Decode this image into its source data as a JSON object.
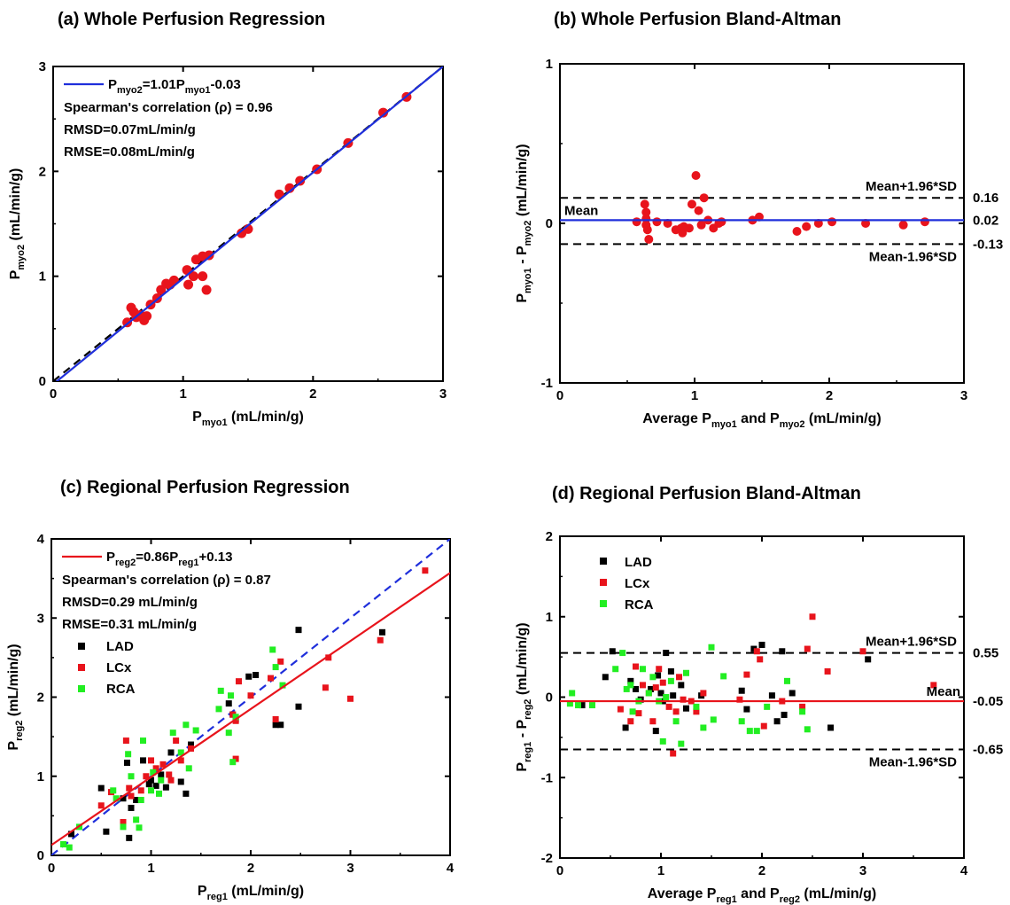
{
  "chart_data": [
    {
      "type": "scatter",
      "title": "(a) Whole Perfusion Regression",
      "xlabel": {
        "main": "P",
        "sub": "myo1",
        "rest": " (mL/min/g)"
      },
      "ylabel": {
        "main": "P",
        "sub": "myo2",
        "rest": " (mL/min/g)"
      },
      "xlim": [
        0,
        3
      ],
      "ylim": [
        0,
        3
      ],
      "xticks": [
        "0",
        "1",
        "2",
        "3"
      ],
      "yticks": [
        "0",
        "1",
        "2",
        "3"
      ],
      "fit": {
        "slope": 1.01,
        "intercept": -0.03,
        "color": "#1f2fdb",
        "label_parts": [
          "P",
          "myo2",
          "=1.01P",
          "myo1",
          "-0.03"
        ]
      },
      "identity_line": true,
      "stats": [
        "Spearman's correlation (ρ) = 0.96",
        "RMSD=0.07mL/min/g",
        "RMSE=0.08mL/min/g"
      ],
      "point_color": "#e8141c",
      "points": [
        [
          0.57,
          0.56
        ],
        [
          0.6,
          0.7
        ],
        [
          0.62,
          0.66
        ],
        [
          0.64,
          0.61
        ],
        [
          0.67,
          0.63
        ],
        [
          0.7,
          0.58
        ],
        [
          0.72,
          0.62
        ],
        [
          0.75,
          0.73
        ],
        [
          0.8,
          0.79
        ],
        [
          0.83,
          0.87
        ],
        [
          0.87,
          0.93
        ],
        [
          0.9,
          0.92
        ],
        [
          0.93,
          0.96
        ],
        [
          1.03,
          1.06
        ],
        [
          1.04,
          0.92
        ],
        [
          1.08,
          1.0
        ],
        [
          1.1,
          1.16
        ],
        [
          1.15,
          1.19
        ],
        [
          1.15,
          1.0
        ],
        [
          1.18,
          0.87
        ],
        [
          1.2,
          1.2
        ],
        [
          1.45,
          1.41
        ],
        [
          1.5,
          1.45
        ],
        [
          1.74,
          1.78
        ],
        [
          1.82,
          1.84
        ],
        [
          1.9,
          1.91
        ],
        [
          2.03,
          2.02
        ],
        [
          2.27,
          2.27
        ],
        [
          2.54,
          2.56
        ],
        [
          2.72,
          2.71
        ]
      ]
    },
    {
      "type": "scatter",
      "title": "(b) Whole Perfusion Bland-Altman",
      "xlabel": {
        "main": "Average P",
        "sub": "myo1",
        "mid": " and P",
        "sub2": "myo2",
        "rest": "  (mL/min/g)"
      },
      "ylabel": {
        "main": "P",
        "sub": "myo1",
        "mid": " - P",
        "sub2": "myo2",
        "rest": "  (mL/min/g)"
      },
      "xlim": [
        0,
        3
      ],
      "ylim": [
        -1,
        1
      ],
      "xticks": [
        "0",
        "1",
        "2",
        "3"
      ],
      "yticks": [
        "-1",
        "0",
        "1"
      ],
      "mean": 0.02,
      "upper": 0.16,
      "lower": -0.13,
      "right_labels": [
        "0.16",
        "0.02",
        "-0.13"
      ],
      "line_labels": {
        "mean": "Mean",
        "upper": "Mean+1.96*SD",
        "lower": "Mean-1.96*SD"
      },
      "mean_color": "#1f2fdb",
      "point_color": "#e8141c",
      "points": [
        [
          0.57,
          0.01
        ],
        [
          0.63,
          0.12
        ],
        [
          0.64,
          0.07
        ],
        [
          0.64,
          0.03
        ],
        [
          0.64,
          -0.01
        ],
        [
          0.65,
          -0.04
        ],
        [
          0.66,
          -0.1
        ],
        [
          0.72,
          0.01
        ],
        [
          0.8,
          0.0
        ],
        [
          0.86,
          -0.04
        ],
        [
          0.9,
          -0.03
        ],
        [
          0.91,
          -0.06
        ],
        [
          0.92,
          -0.02
        ],
        [
          0.96,
          -0.03
        ],
        [
          0.98,
          0.12
        ],
        [
          1.01,
          0.3
        ],
        [
          1.03,
          0.08
        ],
        [
          1.05,
          -0.01
        ],
        [
          1.07,
          0.16
        ],
        [
          1.1,
          0.02
        ],
        [
          1.14,
          -0.03
        ],
        [
          1.18,
          0.0
        ],
        [
          1.2,
          0.01
        ],
        [
          1.43,
          0.02
        ],
        [
          1.48,
          0.04
        ],
        [
          1.76,
          -0.05
        ],
        [
          1.83,
          -0.02
        ],
        [
          1.92,
          0.0
        ],
        [
          2.02,
          0.01
        ],
        [
          2.27,
          0.0
        ],
        [
          2.55,
          -0.01
        ],
        [
          2.71,
          0.01
        ]
      ]
    },
    {
      "type": "scatter",
      "title": "(c) Regional Perfusion Regression",
      "xlabel": {
        "main": "P",
        "sub": "reg1",
        "rest": " (mL/min/g)"
      },
      "ylabel": {
        "main": "P",
        "sub": "reg2",
        "rest": " (mL/min/g)"
      },
      "xlim": [
        0,
        4
      ],
      "ylim": [
        0,
        4
      ],
      "xticks": [
        "0",
        "1",
        "2",
        "3",
        "4"
      ],
      "yticks": [
        "0",
        "1",
        "2",
        "3",
        "4"
      ],
      "fit": {
        "slope": 0.86,
        "intercept": 0.13,
        "color": "#e8141c",
        "label_parts": [
          "P",
          "reg2",
          "=0.86P",
          "reg1",
          "+0.13"
        ]
      },
      "identity_line": true,
      "stats": [
        "Spearman's correlation (ρ) = 0.87",
        "RMSD=0.29 mL/min/g",
        "RMSE=0.31 mL/min/g"
      ],
      "series": [
        {
          "name": "LAD",
          "color": "#000000",
          "points": [
            [
              0.2,
              0.27
            ],
            [
              0.5,
              0.85
            ],
            [
              0.55,
              0.3
            ],
            [
              0.72,
              0.72
            ],
            [
              0.76,
              1.17
            ],
            [
              0.78,
              0.22
            ],
            [
              0.8,
              0.6
            ],
            [
              0.85,
              0.7
            ],
            [
              0.92,
              1.2
            ],
            [
              0.98,
              0.9
            ],
            [
              1.0,
              0.95
            ],
            [
              1.05,
              0.88
            ],
            [
              1.1,
              1.02
            ],
            [
              1.15,
              0.86
            ],
            [
              1.2,
              1.3
            ],
            [
              1.3,
              0.93
            ],
            [
              1.35,
              0.78
            ],
            [
              1.4,
              1.4
            ],
            [
              1.78,
              1.92
            ],
            [
              1.82,
              1.78
            ],
            [
              1.85,
              1.72
            ],
            [
              1.98,
              2.26
            ],
            [
              2.05,
              2.28
            ],
            [
              2.25,
              1.65
            ],
            [
              2.3,
              1.65
            ],
            [
              2.48,
              2.85
            ],
            [
              2.48,
              1.88
            ],
            [
              3.32,
              2.82
            ]
          ]
        },
        {
          "name": "LCx",
          "color": "#e8141c",
          "points": [
            [
              0.5,
              0.63
            ],
            [
              0.6,
              0.8
            ],
            [
              0.72,
              0.42
            ],
            [
              0.75,
              1.45
            ],
            [
              0.78,
              0.85
            ],
            [
              0.8,
              0.75
            ],
            [
              0.9,
              0.82
            ],
            [
              0.95,
              1.0
            ],
            [
              1.0,
              1.2
            ],
            [
              1.05,
              1.1
            ],
            [
              1.12,
              1.15
            ],
            [
              1.18,
              1.02
            ],
            [
              1.2,
              0.95
            ],
            [
              1.25,
              1.45
            ],
            [
              1.3,
              1.2
            ],
            [
              1.4,
              1.35
            ],
            [
              1.82,
              1.78
            ],
            [
              1.85,
              1.7
            ],
            [
              1.85,
              1.22
            ],
            [
              1.88,
              2.2
            ],
            [
              2.0,
              2.02
            ],
            [
              2.2,
              2.24
            ],
            [
              2.25,
              1.72
            ],
            [
              2.3,
              2.45
            ],
            [
              2.75,
              2.12
            ],
            [
              2.78,
              2.5
            ],
            [
              3.0,
              1.98
            ],
            [
              3.3,
              2.72
            ],
            [
              3.75,
              3.6
            ]
          ]
        },
        {
          "name": "RCA",
          "color": "#22ee22",
          "points": [
            [
              0.12,
              0.14
            ],
            [
              0.18,
              0.1
            ],
            [
              0.28,
              0.36
            ],
            [
              0.62,
              0.82
            ],
            [
              0.65,
              0.72
            ],
            [
              0.72,
              0.36
            ],
            [
              0.77,
              1.28
            ],
            [
              0.8,
              1.0
            ],
            [
              0.85,
              0.45
            ],
            [
              0.88,
              0.35
            ],
            [
              0.9,
              0.7
            ],
            [
              0.92,
              1.45
            ],
            [
              1.0,
              0.82
            ],
            [
              1.02,
              1.05
            ],
            [
              1.08,
              0.78
            ],
            [
              1.1,
              0.95
            ],
            [
              1.22,
              1.55
            ],
            [
              1.3,
              1.3
            ],
            [
              1.35,
              1.65
            ],
            [
              1.38,
              1.1
            ],
            [
              1.45,
              1.58
            ],
            [
              1.68,
              1.85
            ],
            [
              1.7,
              2.08
            ],
            [
              1.78,
              1.55
            ],
            [
              1.8,
              2.02
            ],
            [
              1.82,
              1.18
            ],
            [
              1.85,
              1.75
            ],
            [
              2.22,
              2.6
            ],
            [
              2.25,
              2.38
            ],
            [
              2.32,
              2.15
            ]
          ]
        }
      ]
    },
    {
      "type": "scatter",
      "title": "(d) Regional Perfusion Bland-Altman",
      "xlabel": {
        "main": "Average P",
        "sub": "reg1",
        "mid": " and P",
        "sub2": "reg2",
        "rest": "  (mL/min/g)"
      },
      "ylabel": {
        "main": "P",
        "sub": "reg1",
        "mid": " - P",
        "sub2": "reg2",
        "rest": "  (mL/min/g)"
      },
      "xlim": [
        0,
        4
      ],
      "ylim": [
        -2,
        2
      ],
      "xticks": [
        "0",
        "1",
        "2",
        "3",
        "4"
      ],
      "yticks": [
        "-2",
        "-1",
        "0",
        "1",
        "2"
      ],
      "mean": -0.05,
      "upper": 0.55,
      "lower": -0.65,
      "right_labels": [
        "0.55",
        "-0.05",
        "-0.65"
      ],
      "line_labels": {
        "mean": "Mean",
        "upper": "Mean+1.96*SD",
        "lower": "Mean-1.96*SD"
      },
      "mean_color": "#e8141c",
      "series": [
        {
          "name": "LAD",
          "color": "#000000",
          "points": [
            [
              0.22,
              -0.1
            ],
            [
              0.45,
              0.25
            ],
            [
              0.52,
              0.57
            ],
            [
              0.65,
              -0.38
            ],
            [
              0.7,
              0.2
            ],
            [
              0.75,
              0.1
            ],
            [
              0.8,
              -0.03
            ],
            [
              0.9,
              0.1
            ],
            [
              0.95,
              -0.42
            ],
            [
              0.97,
              0.27
            ],
            [
              1.0,
              0.05
            ],
            [
              1.02,
              -0.05
            ],
            [
              1.05,
              0.55
            ],
            [
              1.1,
              0.32
            ],
            [
              1.12,
              0.02
            ],
            [
              1.2,
              0.15
            ],
            [
              1.25,
              -0.14
            ],
            [
              1.4,
              0.02
            ],
            [
              1.8,
              0.08
            ],
            [
              1.85,
              -0.15
            ],
            [
              1.92,
              0.6
            ],
            [
              2.0,
              0.65
            ],
            [
              2.1,
              0.02
            ],
            [
              2.15,
              -0.3
            ],
            [
              2.2,
              0.57
            ],
            [
              2.22,
              -0.22
            ],
            [
              2.3,
              0.05
            ],
            [
              2.68,
              -0.38
            ],
            [
              3.05,
              0.47
            ]
          ]
        },
        {
          "name": "LCx",
          "color": "#e8141c",
          "points": [
            [
              0.6,
              -0.15
            ],
            [
              0.7,
              -0.3
            ],
            [
              0.75,
              0.38
            ],
            [
              0.78,
              -0.2
            ],
            [
              0.82,
              0.15
            ],
            [
              0.88,
              0.05
            ],
            [
              0.92,
              -0.3
            ],
            [
              0.95,
              0.12
            ],
            [
              0.98,
              0.35
            ],
            [
              1.02,
              0.18
            ],
            [
              1.08,
              -0.12
            ],
            [
              1.12,
              -0.7
            ],
            [
              1.15,
              -0.18
            ],
            [
              1.18,
              0.25
            ],
            [
              1.22,
              -0.03
            ],
            [
              1.3,
              -0.05
            ],
            [
              1.35,
              -0.18
            ],
            [
              1.42,
              0.05
            ],
            [
              1.78,
              -0.03
            ],
            [
              1.85,
              0.28
            ],
            [
              1.95,
              0.57
            ],
            [
              1.98,
              0.47
            ],
            [
              2.02,
              -0.36
            ],
            [
              2.2,
              -0.05
            ],
            [
              2.4,
              -0.12
            ],
            [
              2.45,
              0.6
            ],
            [
              2.5,
              1.0
            ],
            [
              2.65,
              0.32
            ],
            [
              3.0,
              0.57
            ],
            [
              3.7,
              0.15
            ]
          ]
        },
        {
          "name": "RCA",
          "color": "#22ee22",
          "points": [
            [
              0.1,
              -0.08
            ],
            [
              0.12,
              0.05
            ],
            [
              0.18,
              -0.1
            ],
            [
              0.32,
              -0.1
            ],
            [
              0.55,
              0.35
            ],
            [
              0.62,
              0.55
            ],
            [
              0.66,
              0.1
            ],
            [
              0.7,
              0.15
            ],
            [
              0.72,
              -0.18
            ],
            [
              0.78,
              -0.05
            ],
            [
              0.82,
              0.35
            ],
            [
              0.88,
              0.05
            ],
            [
              0.92,
              0.25
            ],
            [
              0.98,
              -0.05
            ],
            [
              1.02,
              -0.55
            ],
            [
              1.05,
              0.0
            ],
            [
              1.1,
              0.2
            ],
            [
              1.15,
              -0.3
            ],
            [
              1.2,
              -0.58
            ],
            [
              1.25,
              0.3
            ],
            [
              1.35,
              -0.12
            ],
            [
              1.42,
              -0.38
            ],
            [
              1.5,
              0.62
            ],
            [
              1.52,
              -0.28
            ],
            [
              1.62,
              0.26
            ],
            [
              1.8,
              -0.3
            ],
            [
              1.88,
              -0.42
            ],
            [
              1.95,
              -0.42
            ],
            [
              2.05,
              -0.12
            ],
            [
              2.25,
              0.2
            ],
            [
              2.4,
              -0.18
            ],
            [
              2.45,
              -0.4
            ]
          ]
        }
      ]
    }
  ]
}
